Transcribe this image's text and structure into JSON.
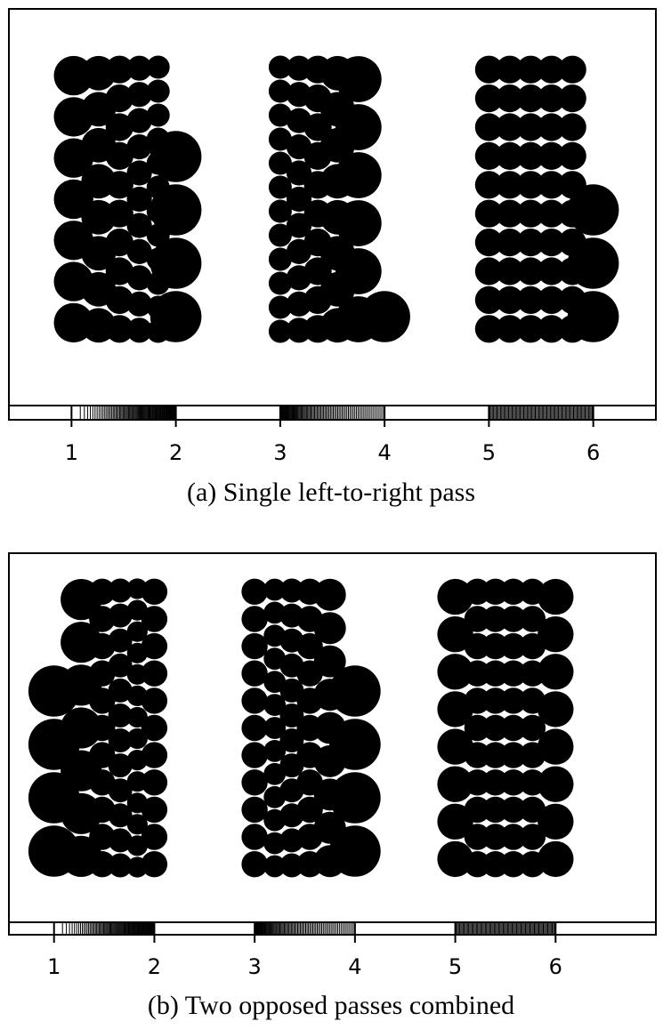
{
  "chart_data": [
    {
      "type": "scatter",
      "title": "",
      "caption": "(a) Single left-to-right pass",
      "xlabel": "",
      "ylabel": "",
      "xlim": [
        0.4,
        6.6
      ],
      "x_ticks": [
        1,
        2,
        3,
        4,
        5,
        6
      ],
      "tick_labels": [
        "1",
        "2",
        "3",
        "4",
        "5",
        "6"
      ],
      "grid": false,
      "legend": "none",
      "rug_intervals": [
        [
          1.0,
          2.0
        ],
        [
          3.0,
          4.0
        ],
        [
          5.0,
          6.0
        ]
      ],
      "point_color": "#000000",
      "groups": [
        {
          "columns": [
            {
              "x": 1.02,
              "count": 7
            },
            {
              "x": 1.26,
              "count": 8
            },
            {
              "x": 1.46,
              "count": 10
            },
            {
              "x": 1.65,
              "count": 11
            },
            {
              "x": 1.83,
              "count": 12
            },
            {
              "x": 2.0,
              "count": 4
            }
          ]
        },
        {
          "columns": [
            {
              "x": 3.0,
              "count": 12
            },
            {
              "x": 3.18,
              "count": 11
            },
            {
              "x": 3.36,
              "count": 10
            },
            {
              "x": 3.55,
              "count": 8
            },
            {
              "x": 3.75,
              "count": 6
            },
            {
              "x": 4.0,
              "count": 1
            }
          ]
        },
        {
          "columns": [
            {
              "x": 5.0,
              "count": 10
            },
            {
              "x": 5.2,
              "count": 10
            },
            {
              "x": 5.4,
              "count": 10
            },
            {
              "x": 5.6,
              "count": 10
            },
            {
              "x": 5.8,
              "count": 10
            },
            {
              "x": 6.0,
              "count": 3
            }
          ]
        }
      ]
    },
    {
      "type": "scatter",
      "title": "",
      "caption": "(b)  Two opposed passes combined",
      "xlabel": "",
      "ylabel": "",
      "xlim": [
        0.55,
        7.0
      ],
      "x_ticks": [
        1,
        2,
        3,
        4,
        5,
        6
      ],
      "tick_labels": [
        "1",
        "2",
        "3",
        "4",
        "5",
        "6"
      ],
      "grid": false,
      "legend": "none",
      "rug_intervals": [
        [
          1.0,
          2.0
        ],
        [
          3.0,
          4.0
        ],
        [
          5.0,
          6.0
        ]
      ],
      "point_color": "#000000",
      "groups": [
        {
          "columns": [
            {
              "x": 1.0,
              "count": 4
            },
            {
              "x": 1.27,
              "count": 7
            },
            {
              "x": 1.48,
              "count": 11
            },
            {
              "x": 1.66,
              "count": 12
            },
            {
              "x": 1.83,
              "count": 14
            },
            {
              "x": 2.0,
              "count": 11
            }
          ]
        },
        {
          "columns": [
            {
              "x": 3.0,
              "count": 11
            },
            {
              "x": 3.2,
              "count": 13
            },
            {
              "x": 3.37,
              "count": 12
            },
            {
              "x": 3.55,
              "count": 11
            },
            {
              "x": 3.75,
              "count": 9
            },
            {
              "x": 4.0,
              "count": 4
            }
          ]
        },
        {
          "columns": [
            {
              "x": 5.0,
              "count": 8
            },
            {
              "x": 5.22,
              "count": 11
            },
            {
              "x": 5.4,
              "count": 11
            },
            {
              "x": 5.58,
              "count": 11
            },
            {
              "x": 5.77,
              "count": 11
            },
            {
              "x": 6.0,
              "count": 8
            }
          ]
        }
      ]
    }
  ]
}
